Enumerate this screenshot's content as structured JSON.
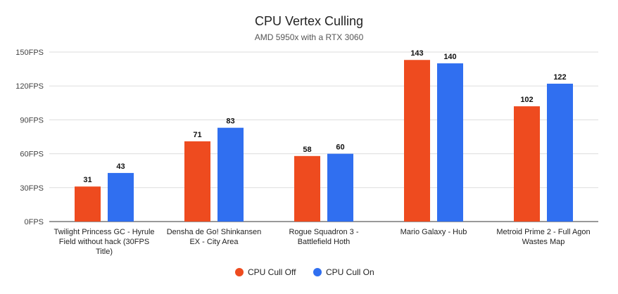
{
  "chart_data": {
    "type": "bar",
    "title": "CPU Vertex Culling",
    "subtitle": "AMD 5950x with a RTX 3060",
    "categories": [
      "Twilight Princess GC - Hyrule Field without hack (30FPS Title)",
      "Densha de Go! Shinkansen EX - City Area",
      "Rogue Squadron 3 - Battlefield Hoth",
      "Mario Galaxy - Hub",
      "Metroid Prime 2 - Full Agon Wastes Map"
    ],
    "category_lines": [
      [
        "Twilight Princess GC - Hyrule",
        "Field without hack (30FPS",
        "Title)"
      ],
      [
        "Densha de Go! Shinkansen",
        "EX - City Area"
      ],
      [
        "Rogue Squadron 3 -",
        "Battlefield Hoth"
      ],
      [
        "Mario Galaxy - Hub"
      ],
      [
        "Metroid Prime 2 - Full Agon",
        "Wastes Map"
      ]
    ],
    "series": [
      {
        "name": "CPU Cull Off",
        "color": "#EE4B1F",
        "values": [
          31,
          71,
          58,
          143,
          102
        ]
      },
      {
        "name": "CPU Cull On",
        "color": "#306FF0",
        "values": [
          43,
          83,
          60,
          140,
          122
        ]
      }
    ],
    "yticks": [
      "0FPS",
      "30FPS",
      "60FPS",
      "90FPS",
      "120FPS",
      "150FPS"
    ],
    "ylim": [
      0,
      150
    ],
    "grid": true,
    "legend": "bottom"
  }
}
